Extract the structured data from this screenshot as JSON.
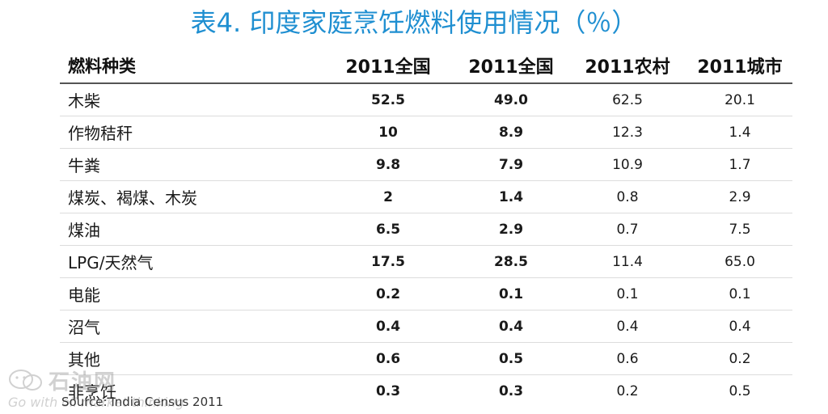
{
  "title": "表4. 印度家庭烹饪燃料使用情况（％）",
  "table": {
    "headers": [
      "燃料种类",
      "2011全国",
      "2011全国",
      "2011农村",
      "2011城市"
    ],
    "rows": [
      [
        "木柴",
        "52.5",
        "49.0",
        "62.5",
        "20.1"
      ],
      [
        "作物秸秆",
        "10",
        "8.9",
        "12.3",
        "1.4"
      ],
      [
        "牛粪",
        "9.8",
        "7.9",
        "10.9",
        "1.7"
      ],
      [
        "煤炭、褐煤、木炭",
        "2",
        "1.4",
        "0.8",
        "2.9"
      ],
      [
        "煤油",
        "6.5",
        "2.9",
        "0.7",
        "7.5"
      ],
      [
        "LPG/天然气",
        "17.5",
        "28.5",
        "11.4",
        "65.0"
      ],
      [
        "电能",
        "0.2",
        "0.1",
        "0.1",
        "0.1"
      ],
      [
        "沼气",
        "0.4",
        "0.4",
        "0.4",
        "0.4"
      ],
      [
        "其他",
        "0.6",
        "0.5",
        "0.6",
        "0.2"
      ],
      [
        "非烹饪",
        "0.3",
        "0.3",
        "0.2",
        "0.5"
      ]
    ]
  },
  "source": "Source: India Census 2011",
  "watermark": {
    "name": "石油网",
    "slogan": "Go with oil   market   thinking"
  },
  "colors": {
    "title": "#1f8fd1"
  }
}
